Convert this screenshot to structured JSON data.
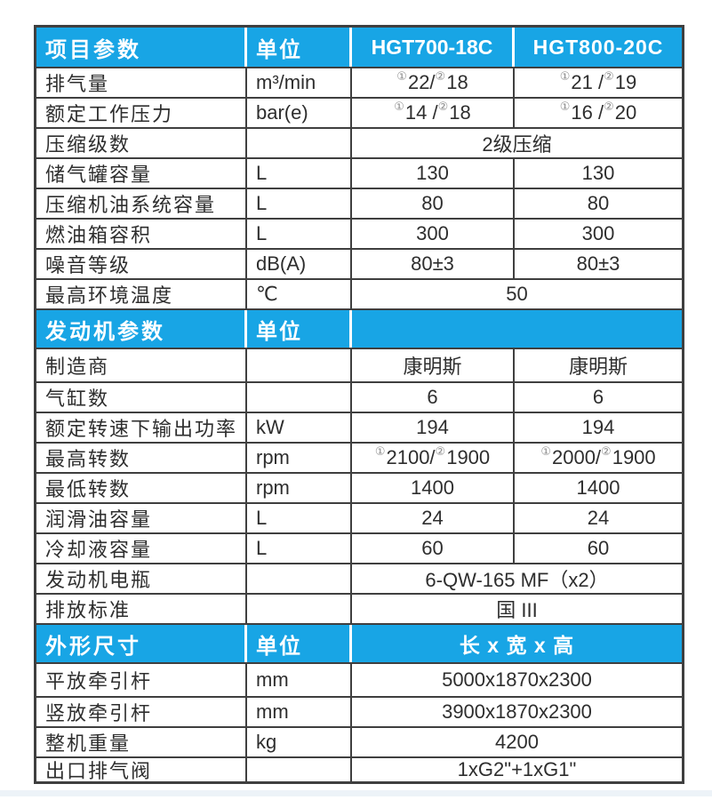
{
  "colors": {
    "header_blue": "#18a5e5",
    "border_dark": "#3f3f3f",
    "text": "#2e2e2e",
    "circled_marker_gray": "#8a8a8a",
    "footer_stripe": "#edf3f8"
  },
  "table": {
    "sections": [
      {
        "header": {
          "c1": "项目参数",
          "c2": "单位",
          "c3": "HGT700-18C",
          "c4": "HGT800-20C"
        },
        "rows": [
          {
            "label": "排气量",
            "unit": "m³/min",
            "v1": "①22/ ②18",
            "v2": "①21 / ②19"
          },
          {
            "label": "额定工作压力",
            "unit": "bar(e)",
            "v1": "①14 / ②18",
            "v2": "①16 / ②20"
          },
          {
            "label": "压缩级数",
            "unit": "",
            "span": "2级压缩"
          },
          {
            "label": "储气罐容量",
            "unit": "L",
            "v1": "130",
            "v2": "130"
          },
          {
            "label": "压缩机油系统容量",
            "unit": "L",
            "v1": "80",
            "v2": "80"
          },
          {
            "label": "燃油箱容积",
            "unit": "L",
            "v1": "300",
            "v2": "300"
          },
          {
            "label": "噪音等级",
            "unit": "dB(A)",
            "v1": "80±3",
            "v2": "80±3"
          },
          {
            "label": "最高环境温度",
            "unit": "℃",
            "span": "50"
          }
        ]
      },
      {
        "header": {
          "c1": "发动机参数",
          "c2": "单位",
          "c3": ""
        },
        "rows": [
          {
            "label": "制造商",
            "unit": "",
            "v1": "康明斯",
            "v2": "康明斯"
          },
          {
            "label": "气缸数",
            "unit": "",
            "v1": "6",
            "v2": "6"
          },
          {
            "label": "额定转速下输出功率",
            "unit": "kW",
            "v1": "194",
            "v2": "194"
          },
          {
            "label": "最高转数",
            "unit": "rpm",
            "v1": "①2100/ ②1900",
            "v2": "①2000/ ②1900"
          },
          {
            "label": "最低转数",
            "unit": "rpm",
            "v1": "1400",
            "v2": "1400"
          },
          {
            "label": "润滑油容量",
            "unit": "L",
            "v1": "24",
            "v2": "24"
          },
          {
            "label": "冷却液容量",
            "unit": "L",
            "v1": "60",
            "v2": "60"
          },
          {
            "label": "发动机电瓶",
            "unit": "",
            "span": "6-QW-165 MF（x2）"
          },
          {
            "label": "排放标准",
            "unit": "",
            "span": "国 III"
          }
        ]
      },
      {
        "header": {
          "c1": "外形尺寸",
          "c2": "单位",
          "c3": "长 x 宽 x 高"
        },
        "rows": [
          {
            "label": "平放牵引杆",
            "unit": "mm",
            "span": "5000x1870x2300"
          },
          {
            "label": "竖放牵引杆",
            "unit": "mm",
            "span": "3900x1870x2300"
          },
          {
            "label": "整机重量",
            "unit": "kg",
            "span": "4200"
          },
          {
            "label": "出口排气阀",
            "unit": "",
            "span": "1xG2\"+1xG1\""
          }
        ]
      }
    ]
  }
}
